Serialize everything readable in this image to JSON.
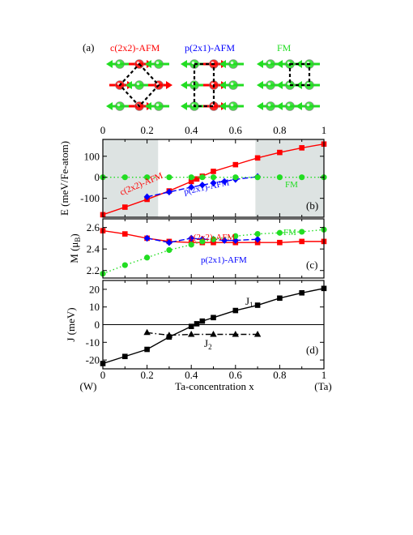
{
  "panel_a": {
    "label": "(a)",
    "structures": [
      {
        "name": "c(2x2)-AFM",
        "color": "#ff0000"
      },
      {
        "name": "p(2x1)-AFM",
        "color": "#0000ff"
      },
      {
        "name": "FM",
        "color": "#22dd22"
      }
    ]
  },
  "top_axis": {
    "ticks": [
      "0",
      "0.2",
      "0.4",
      "0.6",
      "0.8",
      "1"
    ]
  },
  "bottom_axis": {
    "ticks": [
      "0",
      "0.2",
      "0.4",
      "0.6",
      "0.8",
      "1"
    ],
    "end_left": "(W)",
    "end_right": "(Ta)",
    "xlabel": "Ta-concentration x"
  },
  "colors": {
    "red": "#ff0000",
    "blue": "#0000ff",
    "green": "#22dd22",
    "black": "#000000",
    "shade": "#dde3e2"
  },
  "chart_data": [
    {
      "panel": "(b)",
      "type": "line",
      "ylabel": "E (meV/Fe-atom)",
      "ylim": [
        -190,
        180
      ],
      "yticks": [
        -100,
        0,
        100
      ],
      "shaded_x": [
        [
          0,
          0.25
        ],
        [
          0.69,
          1
        ]
      ],
      "series": [
        {
          "name": "c(2x2)-AFM",
          "color": "#ff0000",
          "marker": "square",
          "line": "solid",
          "x": [
            0,
            0.1,
            0.2,
            0.3,
            0.4,
            0.425,
            0.45,
            0.5,
            0.6,
            0.7,
            0.8,
            0.9,
            1.0
          ],
          "y": [
            -178,
            -142,
            -105,
            -65,
            -20,
            -8,
            5,
            28,
            60,
            92,
            118,
            140,
            158
          ]
        },
        {
          "name": "p(2x1)-AFM",
          "color": "#0000ff",
          "marker": "diamond",
          "line": "dashed",
          "x": [
            0.2,
            0.3,
            0.4,
            0.45,
            0.5,
            0.55,
            0.6,
            0.7
          ],
          "y": [
            -93,
            -70,
            -47,
            -37,
            -27,
            -20,
            -10,
            3
          ]
        },
        {
          "name": "FM",
          "color": "#22dd22",
          "marker": "circle",
          "line": "dotted",
          "x": [
            0,
            0.1,
            0.2,
            0.3,
            0.4,
            0.45,
            0.5,
            0.6,
            0.7,
            0.8,
            0.9,
            1.0
          ],
          "y": [
            0,
            0,
            0,
            0,
            0,
            0,
            0,
            0,
            0,
            0,
            0,
            0
          ]
        }
      ]
    },
    {
      "panel": "(c)",
      "type": "line",
      "ylabel": "M (μB)",
      "ylim": [
        2.13,
        2.68
      ],
      "yticks": [
        2.2,
        2.4,
        2.6
      ],
      "series": [
        {
          "name": "c(2x2)-AFM",
          "color": "#ff0000",
          "marker": "square",
          "line": "solid",
          "x": [
            0,
            0.1,
            0.2,
            0.3,
            0.4,
            0.45,
            0.5,
            0.6,
            0.7,
            0.8,
            0.9,
            1.0
          ],
          "y": [
            2.57,
            2.54,
            2.5,
            2.47,
            2.46,
            2.46,
            2.46,
            2.46,
            2.46,
            2.46,
            2.47,
            2.47
          ]
        },
        {
          "name": "p(2x1)-AFM",
          "color": "#0000ff",
          "marker": "diamond",
          "line": "dashed",
          "x": [
            0.2,
            0.3,
            0.4,
            0.45,
            0.5,
            0.55,
            0.6,
            0.7
          ],
          "y": [
            2.5,
            2.46,
            2.5,
            2.49,
            2.49,
            2.48,
            2.48,
            2.49
          ]
        },
        {
          "name": "FM",
          "color": "#22dd22",
          "marker": "circle",
          "line": "dotted",
          "x": [
            0,
            0.1,
            0.2,
            0.3,
            0.4,
            0.45,
            0.5,
            0.6,
            0.7,
            0.8,
            0.9,
            1.0
          ],
          "y": [
            2.17,
            2.25,
            2.32,
            2.39,
            2.44,
            2.47,
            2.49,
            2.52,
            2.54,
            2.55,
            2.56,
            2.58
          ]
        }
      ]
    },
    {
      "panel": "(d)",
      "type": "line",
      "ylabel": "J (meV)",
      "ylim": [
        -25,
        25
      ],
      "yticks": [
        -20,
        -10,
        0,
        10,
        20
      ],
      "zero_line": true,
      "series": [
        {
          "name": "J1",
          "label_main": "J",
          "label_sub": "1",
          "color": "#000000",
          "marker": "square",
          "line": "solid",
          "x": [
            0,
            0.1,
            0.2,
            0.3,
            0.4,
            0.425,
            0.45,
            0.5,
            0.6,
            0.7,
            0.8,
            0.9,
            1.0
          ],
          "y": [
            -22,
            -18,
            -14,
            -7,
            -1,
            0.5,
            2,
            4,
            8,
            11,
            15,
            18,
            20.5
          ]
        },
        {
          "name": "J2",
          "label_main": "J",
          "label_sub": "2",
          "color": "#000000",
          "marker": "triangle",
          "line": "dashdot",
          "x": [
            0.2,
            0.3,
            0.4,
            0.5,
            0.6,
            0.7
          ],
          "y": [
            -4.5,
            -6,
            -5.5,
            -5.5,
            -5.5,
            -5.5
          ]
        }
      ]
    }
  ]
}
